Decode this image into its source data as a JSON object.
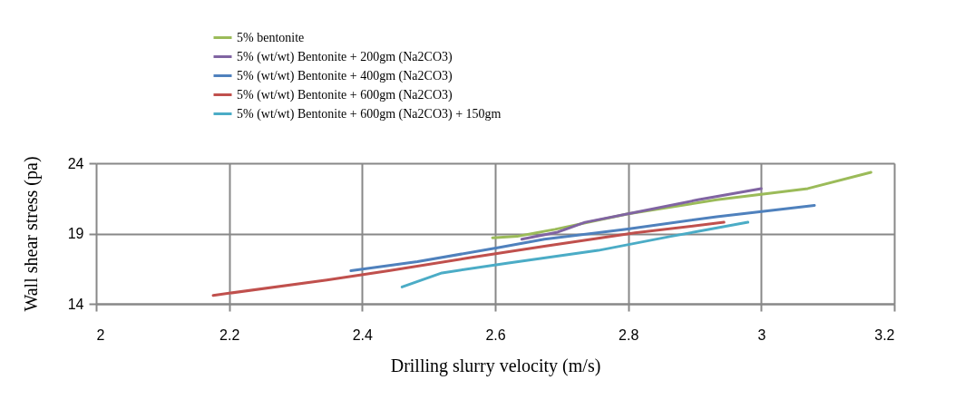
{
  "chart_data": {
    "type": "line",
    "xlabel": "Drilling slurry velocity   (m/s)",
    "ylabel": "Wall shear stress  (pa)",
    "xlim": [
      2,
      3.2
    ],
    "xticks": [
      2,
      2.2,
      2.4,
      2.6,
      2.8,
      3,
      3.2
    ],
    "ylim": [
      14,
      24
    ],
    "yticks": [
      14,
      19,
      24
    ],
    "grid": true,
    "legend": "top",
    "line_style": "solid",
    "marker": "none",
    "series": [
      {
        "name": "5% bentonite",
        "color": "#9bbb59",
        "x": [
          2.596,
          2.633,
          2.69,
          2.8,
          2.933,
          3.07,
          3.165
        ],
        "values": [
          18.7,
          18.8,
          19.3,
          20.4,
          21.4,
          22.2,
          23.35
        ]
      },
      {
        "name": "5% (wt/wt) Bentonite + 200gm (Na2CO3)",
        "color": "#8064a2",
        "x": [
          2.64,
          2.694,
          2.735,
          2.81,
          2.905,
          3.0
        ],
        "values": [
          18.6,
          19.1,
          19.8,
          20.5,
          21.4,
          22.2
        ]
      },
      {
        "name": "5% (wt/wt) Bentonite + 400gm (Na2CO3)",
        "color": "#4f81bd",
        "x": [
          2.383,
          2.483,
          2.605,
          2.674,
          2.797,
          2.933,
          3.08
        ],
        "values": [
          16.35,
          17.0,
          18.0,
          18.6,
          19.3,
          20.2,
          21.0
        ]
      },
      {
        "name": "5% (wt/wt) Bentonite + 600gm (Na2CO3)",
        "color": "#c0504d",
        "x": [
          2.176,
          2.347,
          2.44,
          2.565,
          2.674,
          2.81,
          2.944
        ],
        "values": [
          14.6,
          15.7,
          16.35,
          17.3,
          18.1,
          19.05,
          19.8
        ]
      },
      {
        "name": "5% (wt/wt) Bentonite + 600gm (Na2CO3) + 150gm",
        "color": "#4bacc6",
        "x": [
          2.46,
          2.52,
          2.62,
          2.755,
          2.864,
          2.98
        ],
        "values": [
          15.2,
          16.2,
          16.9,
          17.8,
          18.8,
          19.8
        ]
      }
    ]
  }
}
